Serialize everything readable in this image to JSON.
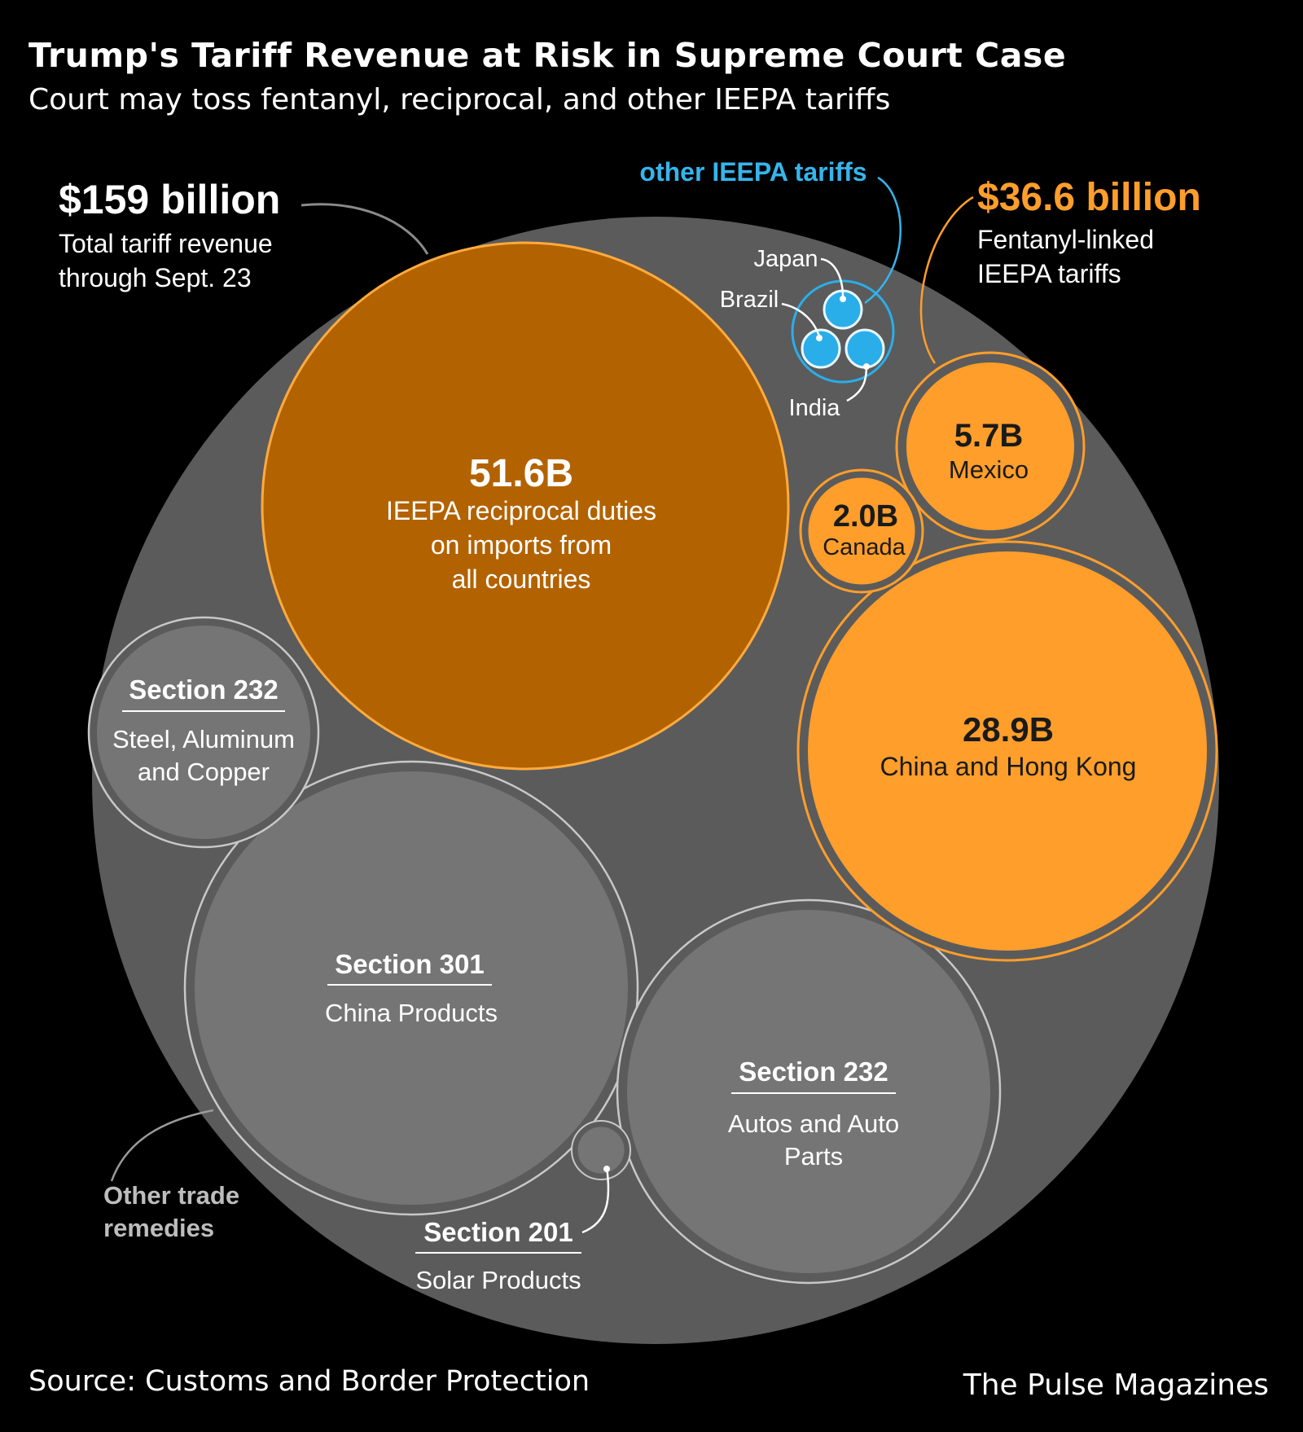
{
  "title": "Trump's Tariff Revenue at Risk in Supreme Court Case",
  "subtitle": "Court may toss fentanyl, reciprocal, and other IEEPA tariffs",
  "source": "Source: Customs and Border Protection",
  "credit": "The Pulse Magazines",
  "colors": {
    "background": "#000000",
    "total": "#5b5b5b",
    "remedy": "#757575",
    "reciprocal": "#b36200",
    "fentanyl": "#ff9e2b",
    "other_ieepa": "#2aaeea",
    "orange_label": "#ff9e2b",
    "blue_label": "#35b5ec",
    "grey_label": "#bdbdbd"
  },
  "chart_data": {
    "type": "bubble",
    "total": {
      "value_label": "$159 billion",
      "note_lines": [
        "Total tariff revenue",
        "through Sept. 23"
      ]
    },
    "groups": [
      {
        "key": "fentanyl",
        "value_label": "$36.6 billion",
        "note_lines": [
          "Fentanyl-linked",
          "IEEPA tariffs"
        ]
      },
      {
        "key": "other_ieepa",
        "label": "other IEEPA tariffs",
        "members": [
          "Japan",
          "Brazil",
          "India"
        ]
      },
      {
        "key": "other_remedies",
        "label_lines": [
          "Other trade",
          "remedies"
        ]
      }
    ],
    "bubbles": [
      {
        "key": "reciprocal",
        "group": "reciprocal",
        "value": 51.6,
        "value_label": "51.6B",
        "label_lines": [
          "IEEPA reciprocal duties",
          "on imports from",
          "all countries"
        ]
      },
      {
        "key": "china",
        "group": "fentanyl",
        "value": 28.9,
        "value_label": "28.9B",
        "label_lines": [
          "China and Hong Kong"
        ]
      },
      {
        "key": "mexico",
        "group": "fentanyl",
        "value": 5.7,
        "value_label": "5.7B",
        "label_lines": [
          "Mexico"
        ]
      },
      {
        "key": "canada",
        "group": "fentanyl",
        "value": 2.0,
        "value_label": "2.0B",
        "label_lines": [
          "Canada"
        ]
      },
      {
        "key": "s301",
        "group": "other_remedies",
        "heading": "Section 301",
        "label_lines": [
          "China Products"
        ]
      },
      {
        "key": "s232_autos",
        "group": "other_remedies",
        "heading": "Section 232",
        "label_lines": [
          "Autos and Auto",
          "Parts"
        ]
      },
      {
        "key": "s232_steel",
        "group": "other_remedies",
        "heading": "Section 232",
        "label_lines": [
          "Steel, Aluminum",
          "and Copper"
        ]
      },
      {
        "key": "s201",
        "group": "other_remedies",
        "heading": "Section 201",
        "label_lines": [
          "Solar Products"
        ]
      },
      {
        "key": "japan",
        "group": "other_ieepa",
        "label": "Japan"
      },
      {
        "key": "brazil",
        "group": "other_ieepa",
        "label": "Brazil"
      },
      {
        "key": "india",
        "group": "other_ieepa",
        "label": "India"
      }
    ]
  }
}
